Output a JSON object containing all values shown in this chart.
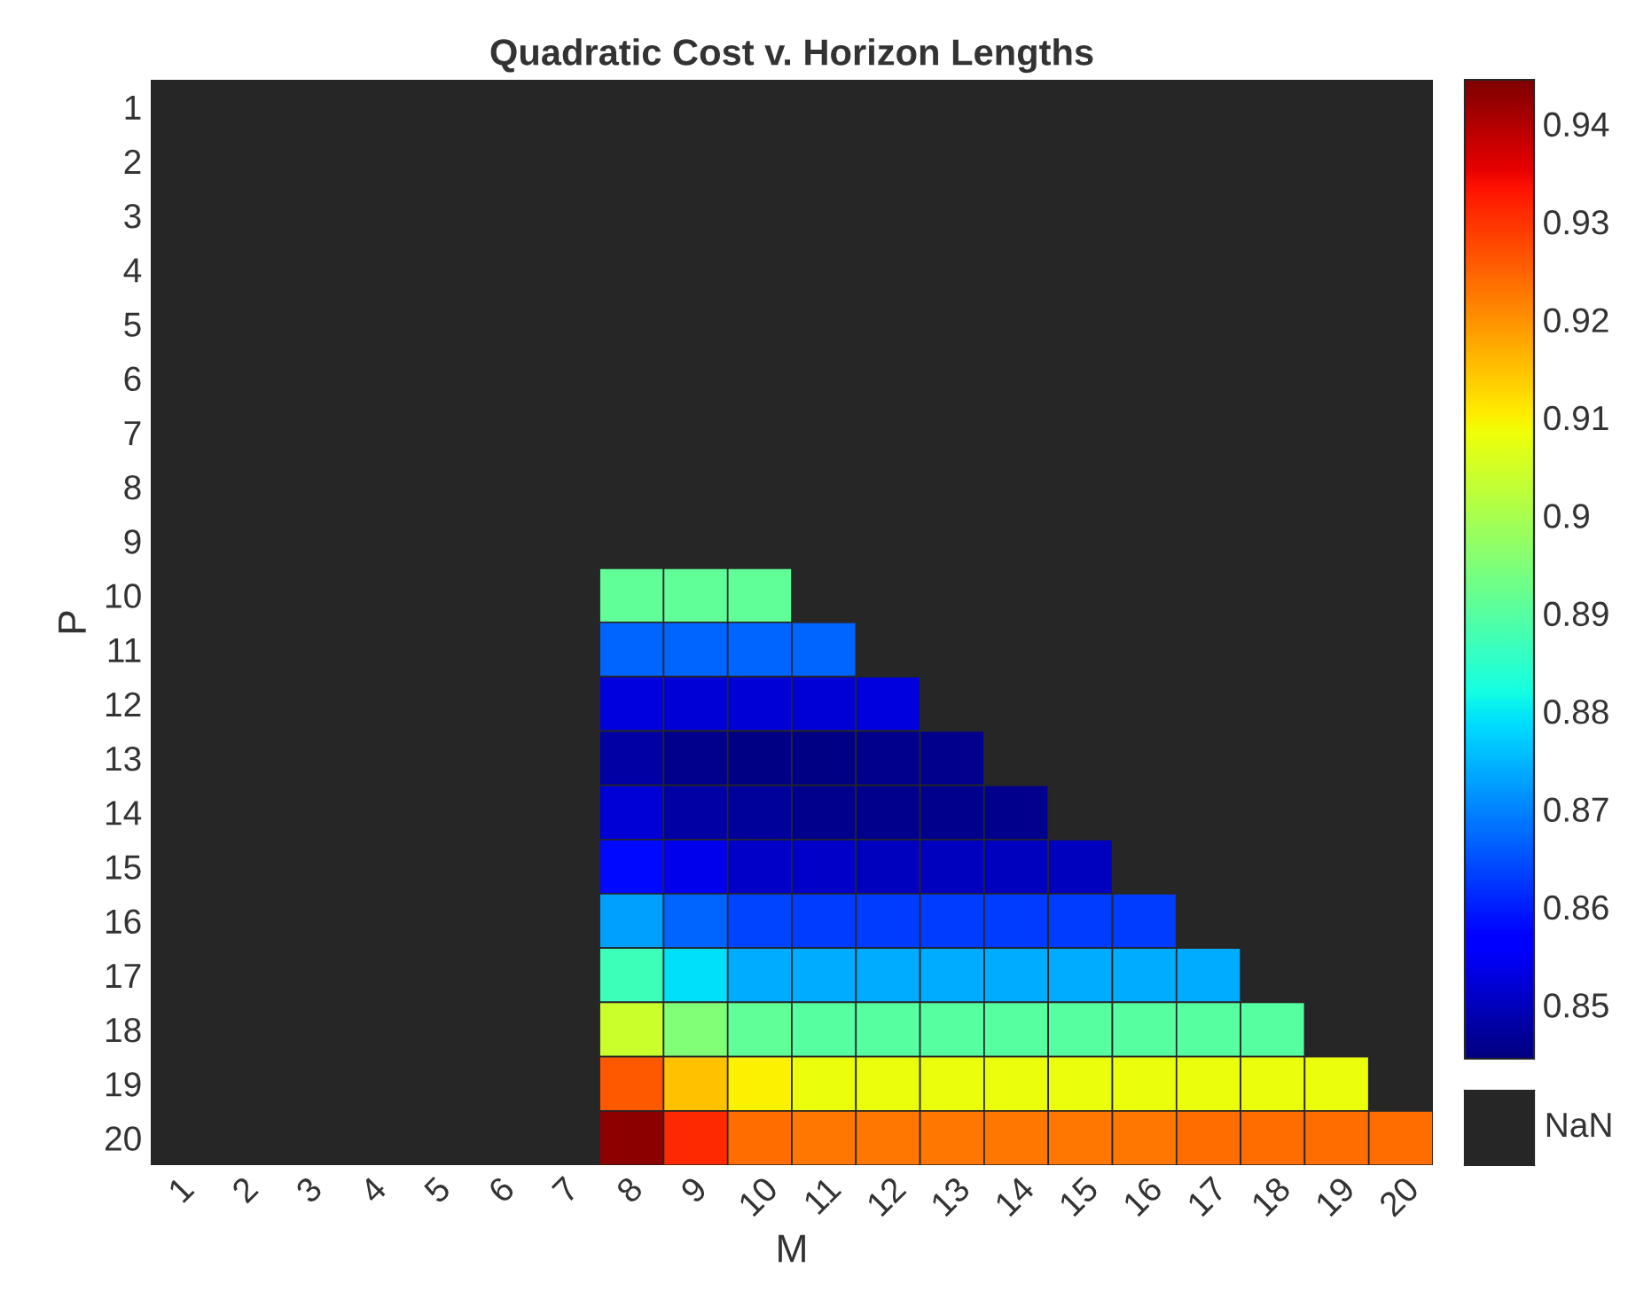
{
  "chart_data": {
    "type": "heatmap",
    "title": "Quadratic Cost v. Horizon Lengths",
    "xlabel": "M",
    "ylabel": "P",
    "categories": [
      "1",
      "2",
      "3",
      "4",
      "5",
      "6",
      "7",
      "8",
      "9",
      "10",
      "11",
      "12",
      "13",
      "14",
      "15",
      "16",
      "17",
      "18",
      "19",
      "20"
    ],
    "y_categories": [
      "1",
      "2",
      "3",
      "4",
      "5",
      "6",
      "7",
      "8",
      "9",
      "10",
      "11",
      "12",
      "13",
      "14",
      "15",
      "16",
      "17",
      "18",
      "19",
      "20"
    ],
    "cells": [
      [
        null,
        null,
        null,
        null,
        null,
        null,
        null,
        null,
        null,
        null,
        null,
        null,
        null,
        null,
        null,
        null,
        null,
        null,
        null,
        null
      ],
      [
        null,
        null,
        null,
        null,
        null,
        null,
        null,
        null,
        null,
        null,
        null,
        null,
        null,
        null,
        null,
        null,
        null,
        null,
        null,
        null
      ],
      [
        null,
        null,
        null,
        null,
        null,
        null,
        null,
        null,
        null,
        null,
        null,
        null,
        null,
        null,
        null,
        null,
        null,
        null,
        null,
        null
      ],
      [
        null,
        null,
        null,
        null,
        null,
        null,
        null,
        null,
        null,
        null,
        null,
        null,
        null,
        null,
        null,
        null,
        null,
        null,
        null,
        null
      ],
      [
        null,
        null,
        null,
        null,
        null,
        null,
        null,
        null,
        null,
        null,
        null,
        null,
        null,
        null,
        null,
        null,
        null,
        null,
        null,
        null
      ],
      [
        null,
        null,
        null,
        null,
        null,
        null,
        null,
        null,
        null,
        null,
        null,
        null,
        null,
        null,
        null,
        null,
        null,
        null,
        null,
        null
      ],
      [
        null,
        null,
        null,
        null,
        null,
        null,
        null,
        null,
        null,
        null,
        null,
        null,
        null,
        null,
        null,
        null,
        null,
        null,
        null,
        null
      ],
      [
        null,
        null,
        null,
        null,
        null,
        null,
        null,
        null,
        null,
        null,
        null,
        null,
        null,
        null,
        null,
        null,
        null,
        null,
        null,
        null
      ],
      [
        null,
        null,
        null,
        null,
        null,
        null,
        null,
        null,
        null,
        null,
        null,
        null,
        null,
        null,
        null,
        null,
        null,
        null,
        null,
        null
      ],
      [
        null,
        null,
        null,
        null,
        null,
        null,
        null,
        0.891,
        0.891,
        0.891,
        null,
        null,
        null,
        null,
        null,
        null,
        null,
        null,
        null,
        null
      ],
      [
        null,
        null,
        null,
        null,
        null,
        null,
        null,
        0.867,
        0.867,
        0.867,
        0.867,
        null,
        null,
        null,
        null,
        null,
        null,
        null,
        null,
        null
      ],
      [
        null,
        null,
        null,
        null,
        null,
        null,
        null,
        0.853,
        0.852,
        0.852,
        0.852,
        0.853,
        null,
        null,
        null,
        null,
        null,
        null,
        null,
        null
      ],
      [
        null,
        null,
        null,
        null,
        null,
        null,
        null,
        0.848,
        0.846,
        0.845,
        0.845,
        0.846,
        0.846,
        null,
        null,
        null,
        null,
        null,
        null,
        null
      ],
      [
        null,
        null,
        null,
        null,
        null,
        null,
        null,
        0.852,
        0.848,
        0.847,
        0.846,
        0.846,
        0.846,
        0.846,
        null,
        null,
        null,
        null,
        null,
        null
      ],
      [
        null,
        null,
        null,
        null,
        null,
        null,
        null,
        0.858,
        0.854,
        0.851,
        0.851,
        0.85,
        0.85,
        0.85,
        0.85,
        null,
        null,
        null,
        null,
        null
      ],
      [
        null,
        null,
        null,
        null,
        null,
        null,
        null,
        0.873,
        0.867,
        0.864,
        0.863,
        0.863,
        0.863,
        0.863,
        0.863,
        0.863,
        null,
        null,
        null,
        null
      ],
      [
        null,
        null,
        null,
        null,
        null,
        null,
        null,
        0.887,
        0.879,
        0.874,
        0.874,
        0.874,
        0.874,
        0.874,
        0.874,
        0.874,
        0.874,
        null,
        null,
        null
      ],
      [
        null,
        null,
        null,
        null,
        null,
        null,
        null,
        0.904,
        0.895,
        0.891,
        0.89,
        0.89,
        0.89,
        0.89,
        0.89,
        0.89,
        0.89,
        0.89,
        null,
        null
      ],
      [
        null,
        null,
        null,
        null,
        null,
        null,
        null,
        0.926,
        0.915,
        0.91,
        0.908,
        0.908,
        0.908,
        0.908,
        0.908,
        0.908,
        0.908,
        0.908,
        0.908,
        null
      ],
      [
        null,
        null,
        null,
        null,
        null,
        null,
        null,
        0.943,
        0.931,
        0.924,
        0.923,
        0.923,
        0.923,
        0.923,
        0.923,
        0.923,
        0.924,
        0.924,
        0.924,
        0.924
      ]
    ],
    "clim": [
      0.8445,
      0.9445
    ],
    "cticks": [
      0.85,
      0.86,
      0.87,
      0.88,
      0.89,
      0.9,
      0.91,
      0.92,
      0.93,
      0.94
    ],
    "annotations": [
      "NaN"
    ]
  }
}
